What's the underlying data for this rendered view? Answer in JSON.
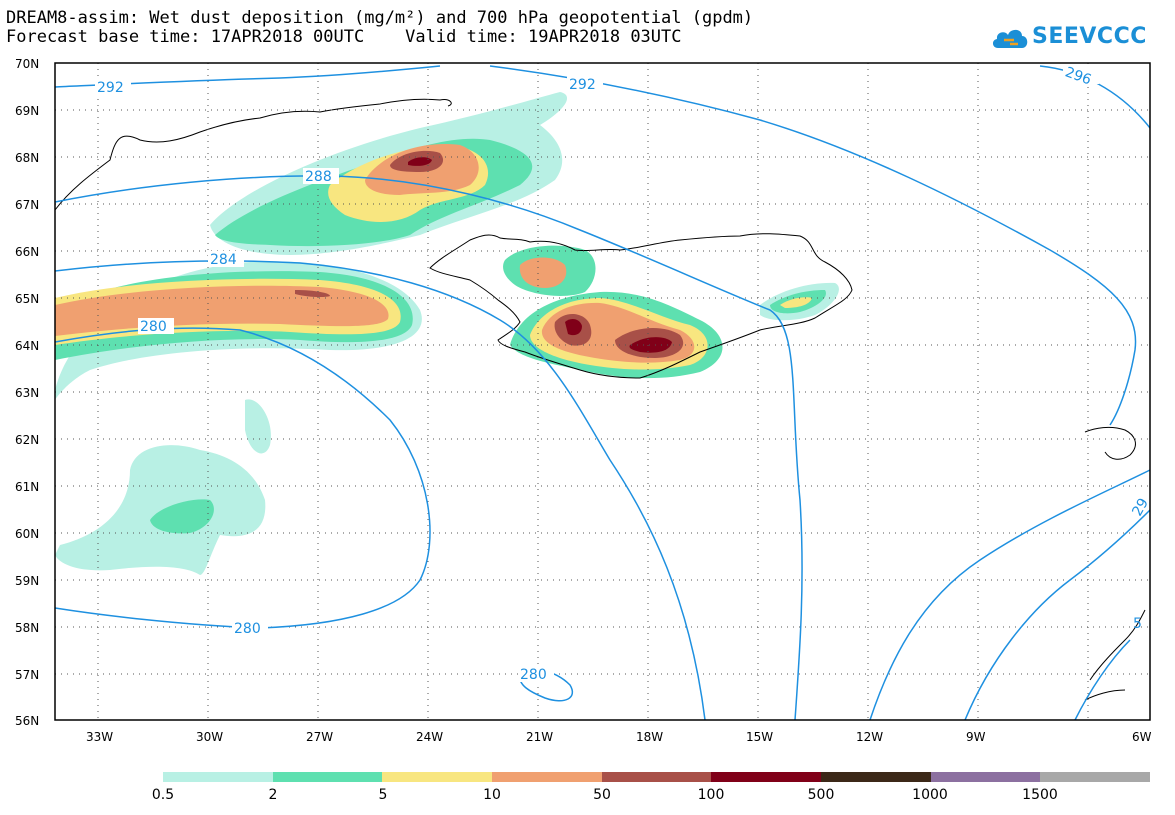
{
  "title_line1": "DREAM8-assim: Wet dust deposition (mg/m²) and 700 hPa geopotential (gpdm)",
  "title_line2": "Forecast base time: 17APR2018 00UTC    Valid time: 19APR2018 03UTC",
  "logo": {
    "text": "SEEVCCC",
    "icon": "cloud-icon"
  },
  "axes": {
    "lat_labels": [
      "70N",
      "69N",
      "68N",
      "67N",
      "66N",
      "65N",
      "64N",
      "63N",
      "62N",
      "61N",
      "60N",
      "59N",
      "58N",
      "57N",
      "56N"
    ],
    "lon_labels": [
      "33W",
      "30W",
      "27W",
      "24W",
      "21W",
      "18W",
      "15W",
      "12W",
      "9W",
      "6W"
    ]
  },
  "contours": [
    {
      "label": "292"
    },
    {
      "label": "292"
    },
    {
      "label": "296"
    },
    {
      "label": "288"
    },
    {
      "label": "284"
    },
    {
      "label": "280"
    },
    {
      "label": "280"
    },
    {
      "label": "280"
    },
    {
      "label": "29"
    },
    {
      "label": "5"
    }
  ],
  "legend": {
    "labels": [
      "0.5",
      "2",
      "5",
      "10",
      "50",
      "100",
      "500",
      "1000",
      "1500"
    ],
    "colors": [
      "#b8f0e4",
      "#5ee0b0",
      "#f8e680",
      "#f0a070",
      "#a85048",
      "#800018",
      "#3c2818",
      "#8c70a0",
      "#a8a8a8"
    ]
  }
}
